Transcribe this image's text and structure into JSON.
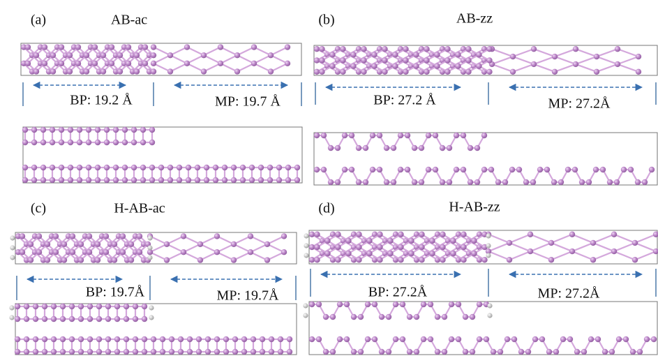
{
  "panels": [
    {
      "label": "(a)",
      "title": "AB-ac",
      "bp": "BP: 19.2 Å",
      "mp": "MP: 19.7 Å"
    },
    {
      "label": "(b)",
      "title": "AB-zz",
      "bp": "BP: 27.2 Å",
      "mp": "MP: 27.2Å"
    },
    {
      "label": "(c)",
      "title": "H-AB-ac",
      "bp": "BP: 19.7Å",
      "mp": "MP: 19.7Å"
    },
    {
      "label": "(d)",
      "title": "H-AB-zz",
      "bp": "BP: 27.2Å",
      "mp": "MP: 27.2Å"
    }
  ]
}
